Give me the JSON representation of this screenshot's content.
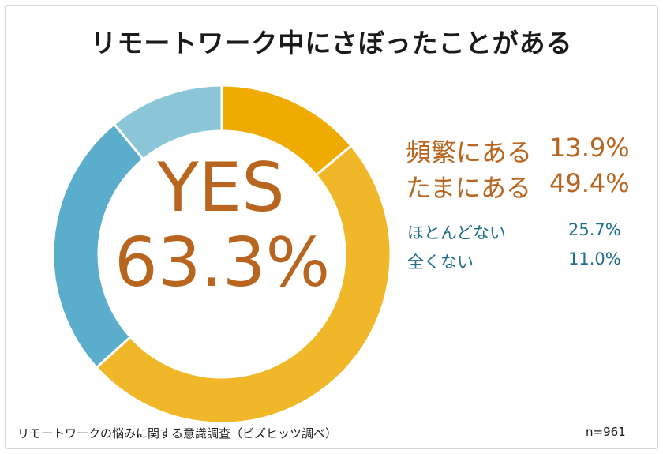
{
  "title": "リモートワーク中にさぼったことがある",
  "center": {
    "label": "YES",
    "value": "63.3%"
  },
  "colors": {
    "frequent": "#efab00",
    "sometimes": "#f0b728",
    "rarely": "#5aaecb",
    "never": "#8ac6d8",
    "accent_text": "#b8651f",
    "blue_text": "#1f6e8c"
  },
  "chart_data": {
    "type": "pie",
    "title": "リモートワーク中にさぼったことがある",
    "categories": [
      "頻繁にある",
      "たまにある",
      "ほとんどない",
      "全くない"
    ],
    "values": [
      13.9,
      49.4,
      25.7,
      11.0
    ],
    "value_labels": [
      "13.9%",
      "49.4%",
      "25.7%",
      "11.0%"
    ],
    "style": "donut",
    "legend_position": "right"
  },
  "footer": {
    "source": "リモートワークの悩みに関する意識調査（ビズヒッツ調べ）",
    "n": "n=961"
  }
}
